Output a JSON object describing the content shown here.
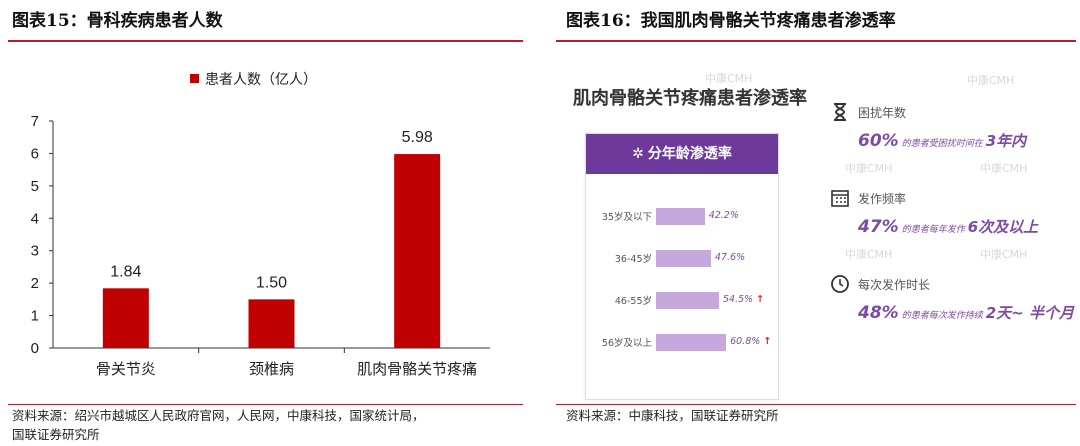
{
  "left": {
    "title": "图表15：骨科疾病患者人数",
    "source_line1": "资料来源：绍兴市越城区人民政府官网，人民网，中康科技，国家统计局，",
    "source_line2": "国联证券研究所"
  },
  "right": {
    "title": "图表16：我国肌肉骨骼关节疼痛患者渗透率",
    "source": "资料来源：中康科技，国联证券研究所",
    "infographic": {
      "watermark": "中康CMH",
      "title": "肌肉骨骼关节疼痛患者渗透率",
      "age_header": "分年龄渗透率",
      "age_rows": [
        {
          "label": "35岁及以下",
          "value": "42.2%",
          "pct": 42.2,
          "arrow": ""
        },
        {
          "label": "36-45岁",
          "value": "47.6%",
          "pct": 47.6,
          "arrow": ""
        },
        {
          "label": "46-55岁",
          "value": "54.5%",
          "pct": 54.5,
          "arrow": "↑"
        },
        {
          "label": "56岁及以上",
          "value": "60.8%",
          "pct": 60.8,
          "arrow": "↑"
        }
      ],
      "stats": [
        {
          "icon": "hourglass-icon",
          "label": "困扰年数",
          "pct": "60%",
          "text": "的患者受困扰时间在",
          "big": "3年内"
        },
        {
          "icon": "calendar-icon",
          "label": "发作频率",
          "pct": "47%",
          "text": "的患者每年发作",
          "big": "6次及以上"
        },
        {
          "icon": "clock-icon",
          "label": "每次发作时长",
          "pct": "48%",
          "text": "的患者每次发作持续",
          "big": "2天~ 半个月"
        }
      ]
    }
  },
  "chart_data": {
    "type": "bar",
    "title": "",
    "categories": [
      "骨关节炎",
      "颈椎病",
      "肌肉骨骼关节疼痛"
    ],
    "series": [
      {
        "name": "患者人数（亿人）",
        "values": [
          1.84,
          1.5,
          5.98
        ],
        "color": "#c00000"
      }
    ],
    "value_labels": [
      "1.84",
      "1.50",
      "5.98"
    ],
    "yticks": [
      "0",
      "1",
      "2",
      "3",
      "4",
      "5",
      "6",
      "7"
    ],
    "ylim": [
      0,
      7
    ],
    "grid": false,
    "legend": "top-center"
  }
}
